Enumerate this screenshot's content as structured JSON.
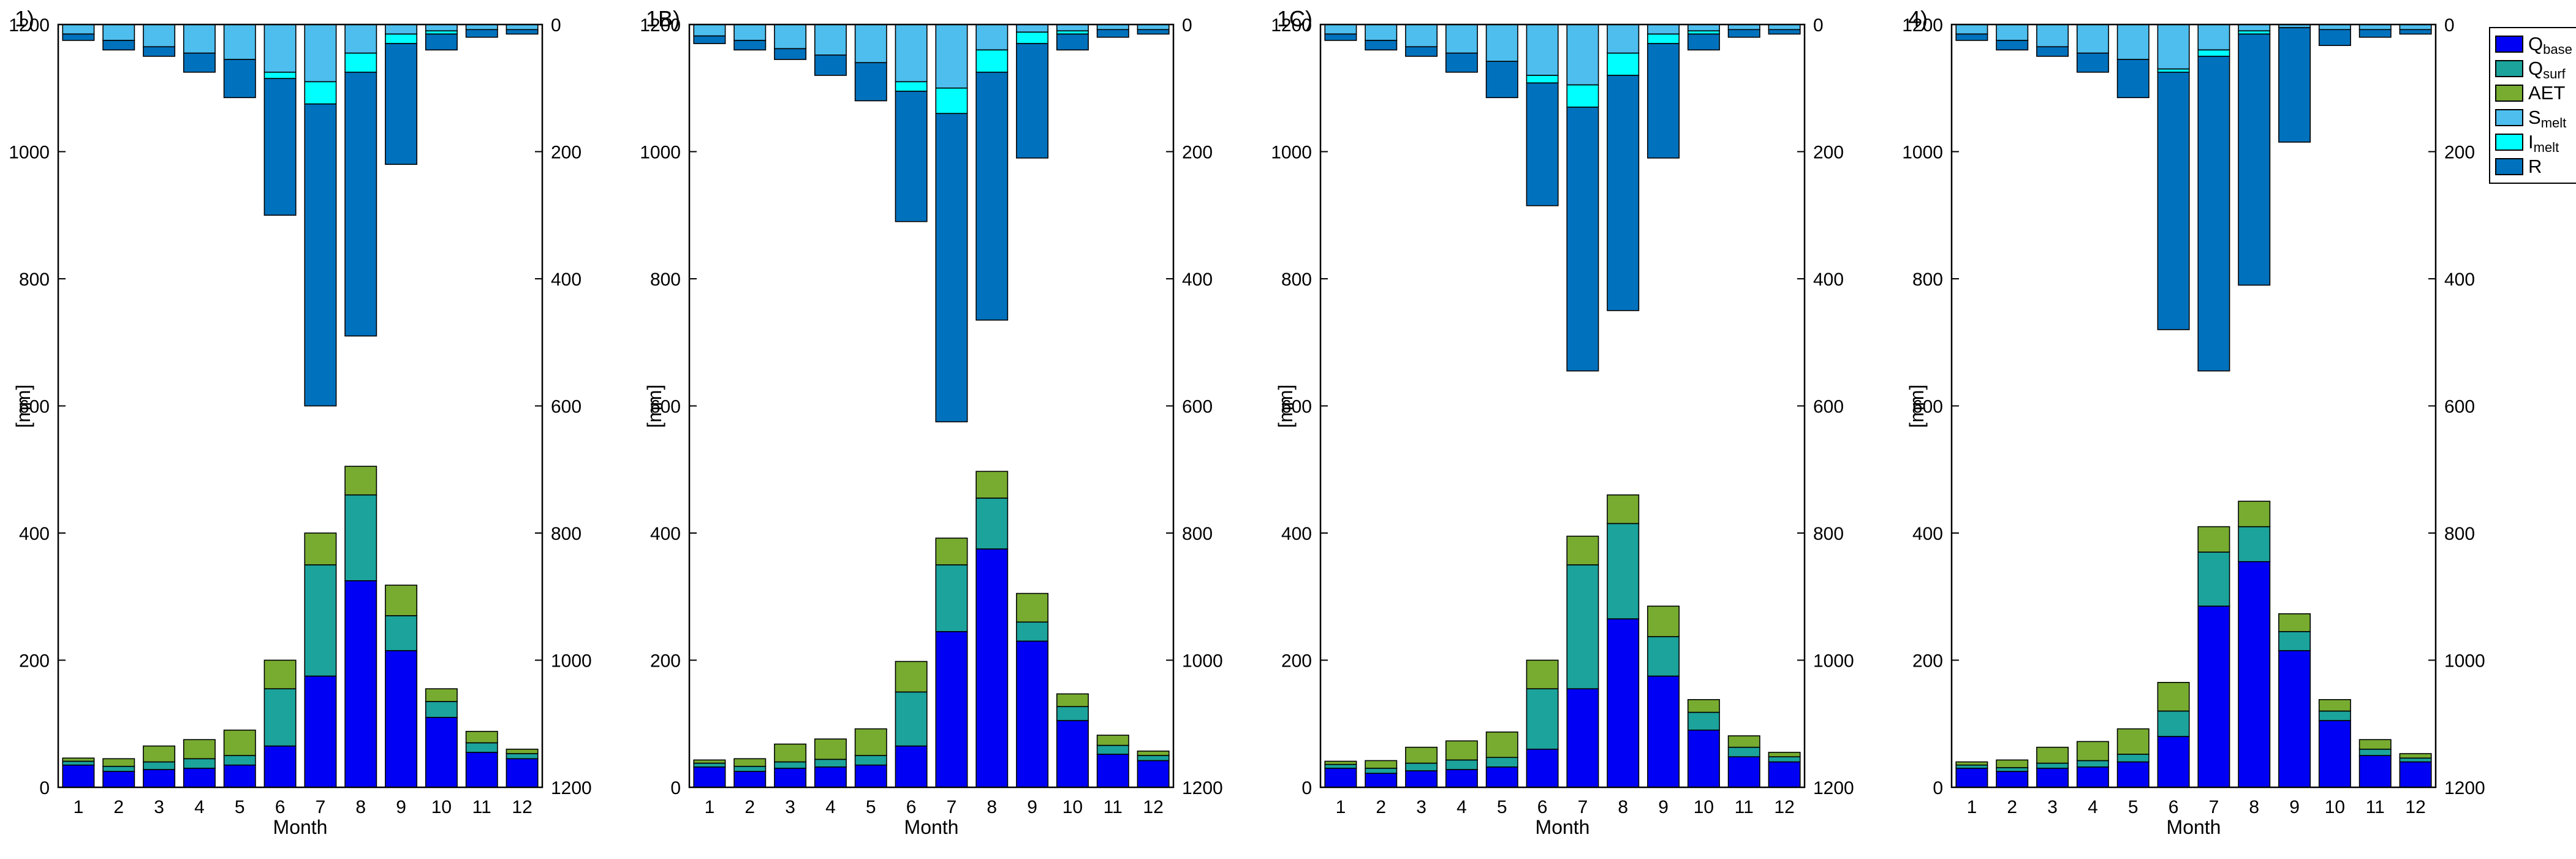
{
  "figure": {
    "background": "#FFFFFF",
    "xlabel": "Month",
    "ylabel": "[mm]",
    "ylim": [
      0,
      1200
    ],
    "left_ticks": [
      0,
      200,
      400,
      600,
      800,
      1000,
      1200
    ],
    "right_ticks": [
      0,
      200,
      400,
      600,
      800,
      1000,
      1200
    ],
    "right_axis_inverted": true,
    "grid": false,
    "legend_position": "right-outside"
  },
  "legend": {
    "items": [
      {
        "name": "Q_base",
        "main": "Q",
        "sub": "base",
        "color": "#0000F5"
      },
      {
        "name": "Q_surf",
        "main": "Q",
        "sub": "surf",
        "color": "#1BA39C"
      },
      {
        "name": "AET",
        "main": "AET",
        "sub": "",
        "color": "#77AC30"
      },
      {
        "name": "S_melt",
        "main": "S",
        "sub": "melt",
        "color": "#4DBEEE"
      },
      {
        "name": "I_melt",
        "main": "I",
        "sub": "melt",
        "color": "#00FFFF"
      },
      {
        "name": "R",
        "main": "R",
        "sub": "",
        "color": "#0072BD"
      }
    ]
  },
  "chart_data": [
    {
      "type": "bar",
      "title": "1)",
      "stacking": "stacked",
      "categories": [
        1,
        2,
        3,
        4,
        5,
        6,
        7,
        8,
        9,
        10,
        11,
        12
      ],
      "xlabel": "Month",
      "ylabel": "[mm]",
      "bottom_axis": {
        "range": [
          0,
          1200
        ],
        "direction": "up"
      },
      "top_axis": {
        "range": [
          0,
          1200
        ],
        "direction": "down"
      },
      "series_up": [
        {
          "name": "Q_base",
          "values": [
            35,
            25,
            28,
            30,
            35,
            65,
            175,
            325,
            215,
            110,
            55,
            45
          ]
        },
        {
          "name": "Q_surf",
          "values": [
            6,
            8,
            12,
            15,
            15,
            90,
            175,
            135,
            55,
            25,
            15,
            8
          ]
        },
        {
          "name": "AET",
          "values": [
            5,
            12,
            25,
            30,
            40,
            45,
            50,
            45,
            48,
            20,
            18,
            7
          ]
        }
      ],
      "series_down": [
        {
          "name": "S_melt",
          "values": [
            15,
            25,
            35,
            45,
            55,
            75,
            90,
            45,
            15,
            10,
            8,
            8
          ]
        },
        {
          "name": "I_melt",
          "values": [
            0,
            0,
            0,
            0,
            0,
            10,
            35,
            30,
            15,
            5,
            0,
            0
          ]
        },
        {
          "name": "R",
          "values": [
            10,
            15,
            15,
            30,
            60,
            215,
            475,
            415,
            190,
            25,
            12,
            7
          ]
        }
      ]
    },
    {
      "type": "bar",
      "title": "1B)",
      "stacking": "stacked",
      "categories": [
        1,
        2,
        3,
        4,
        5,
        6,
        7,
        8,
        9,
        10,
        11,
        12
      ],
      "xlabel": "Month",
      "ylabel": "[mm]",
      "bottom_axis": {
        "range": [
          0,
          1200
        ],
        "direction": "up"
      },
      "top_axis": {
        "range": [
          0,
          1200
        ],
        "direction": "down"
      },
      "series_up": [
        {
          "name": "Q_base",
          "values": [
            32,
            25,
            30,
            32,
            35,
            65,
            245,
            375,
            230,
            105,
            52,
            42
          ]
        },
        {
          "name": "Q_surf",
          "values": [
            6,
            8,
            10,
            12,
            15,
            85,
            105,
            80,
            30,
            22,
            14,
            8
          ]
        },
        {
          "name": "AET",
          "values": [
            5,
            12,
            28,
            32,
            42,
            48,
            42,
            42,
            45,
            20,
            16,
            7
          ]
        }
      ],
      "series_down": [
        {
          "name": "S_melt",
          "values": [
            18,
            25,
            38,
            48,
            60,
            90,
            100,
            40,
            12,
            10,
            8,
            8
          ]
        },
        {
          "name": "I_melt",
          "values": [
            0,
            0,
            0,
            0,
            0,
            15,
            40,
            35,
            18,
            5,
            0,
            0
          ]
        },
        {
          "name": "R",
          "values": [
            12,
            15,
            17,
            32,
            60,
            205,
            485,
            390,
            180,
            25,
            12,
            7
          ]
        }
      ]
    },
    {
      "type": "bar",
      "title": "1C)",
      "stacking": "stacked",
      "categories": [
        1,
        2,
        3,
        4,
        5,
        6,
        7,
        8,
        9,
        10,
        11,
        12
      ],
      "xlabel": "Month",
      "ylabel": "[mm]",
      "bottom_axis": {
        "range": [
          0,
          1200
        ],
        "direction": "up"
      },
      "top_axis": {
        "range": [
          0,
          1200
        ],
        "direction": "down"
      },
      "series_up": [
        {
          "name": "Q_base",
          "values": [
            30,
            22,
            26,
            28,
            32,
            60,
            155,
            265,
            175,
            90,
            48,
            40
          ]
        },
        {
          "name": "Q_surf",
          "values": [
            6,
            8,
            12,
            15,
            15,
            95,
            195,
            150,
            62,
            28,
            15,
            8
          ]
        },
        {
          "name": "AET",
          "values": [
            5,
            12,
            25,
            30,
            40,
            45,
            45,
            45,
            48,
            20,
            18,
            7
          ]
        }
      ],
      "series_down": [
        {
          "name": "S_melt",
          "values": [
            15,
            25,
            35,
            45,
            58,
            80,
            95,
            45,
            15,
            10,
            8,
            8
          ]
        },
        {
          "name": "I_melt",
          "values": [
            0,
            0,
            0,
            0,
            0,
            12,
            35,
            35,
            15,
            5,
            0,
            0
          ]
        },
        {
          "name": "R",
          "values": [
            10,
            15,
            15,
            30,
            57,
            193,
            415,
            370,
            180,
            25,
            12,
            7
          ]
        }
      ]
    },
    {
      "type": "bar",
      "title": "4)",
      "stacking": "stacked",
      "categories": [
        1,
        2,
        3,
        4,
        5,
        6,
        7,
        8,
        9,
        10,
        11,
        12
      ],
      "xlabel": "Month",
      "ylabel": "[mm]",
      "bottom_axis": {
        "range": [
          0,
          1200
        ],
        "direction": "up"
      },
      "top_axis": {
        "range": [
          0,
          1200
        ],
        "direction": "down"
      },
      "series_up": [
        {
          "name": "Q_base",
          "values": [
            30,
            25,
            30,
            32,
            40,
            80,
            285,
            355,
            215,
            105,
            50,
            40
          ]
        },
        {
          "name": "Q_surf",
          "values": [
            5,
            6,
            8,
            10,
            12,
            40,
            85,
            55,
            30,
            15,
            10,
            6
          ]
        },
        {
          "name": "AET",
          "values": [
            5,
            12,
            25,
            30,
            40,
            45,
            40,
            40,
            28,
            18,
            15,
            7
          ]
        }
      ],
      "series_down": [
        {
          "name": "S_melt",
          "values": [
            15,
            25,
            35,
            45,
            55,
            70,
            40,
            10,
            5,
            8,
            8,
            8
          ]
        },
        {
          "name": "I_melt",
          "values": [
            0,
            0,
            0,
            0,
            0,
            5,
            10,
            5,
            0,
            0,
            0,
            0
          ]
        },
        {
          "name": "R",
          "values": [
            10,
            15,
            15,
            30,
            60,
            405,
            495,
            395,
            180,
            25,
            12,
            7
          ]
        }
      ]
    }
  ]
}
